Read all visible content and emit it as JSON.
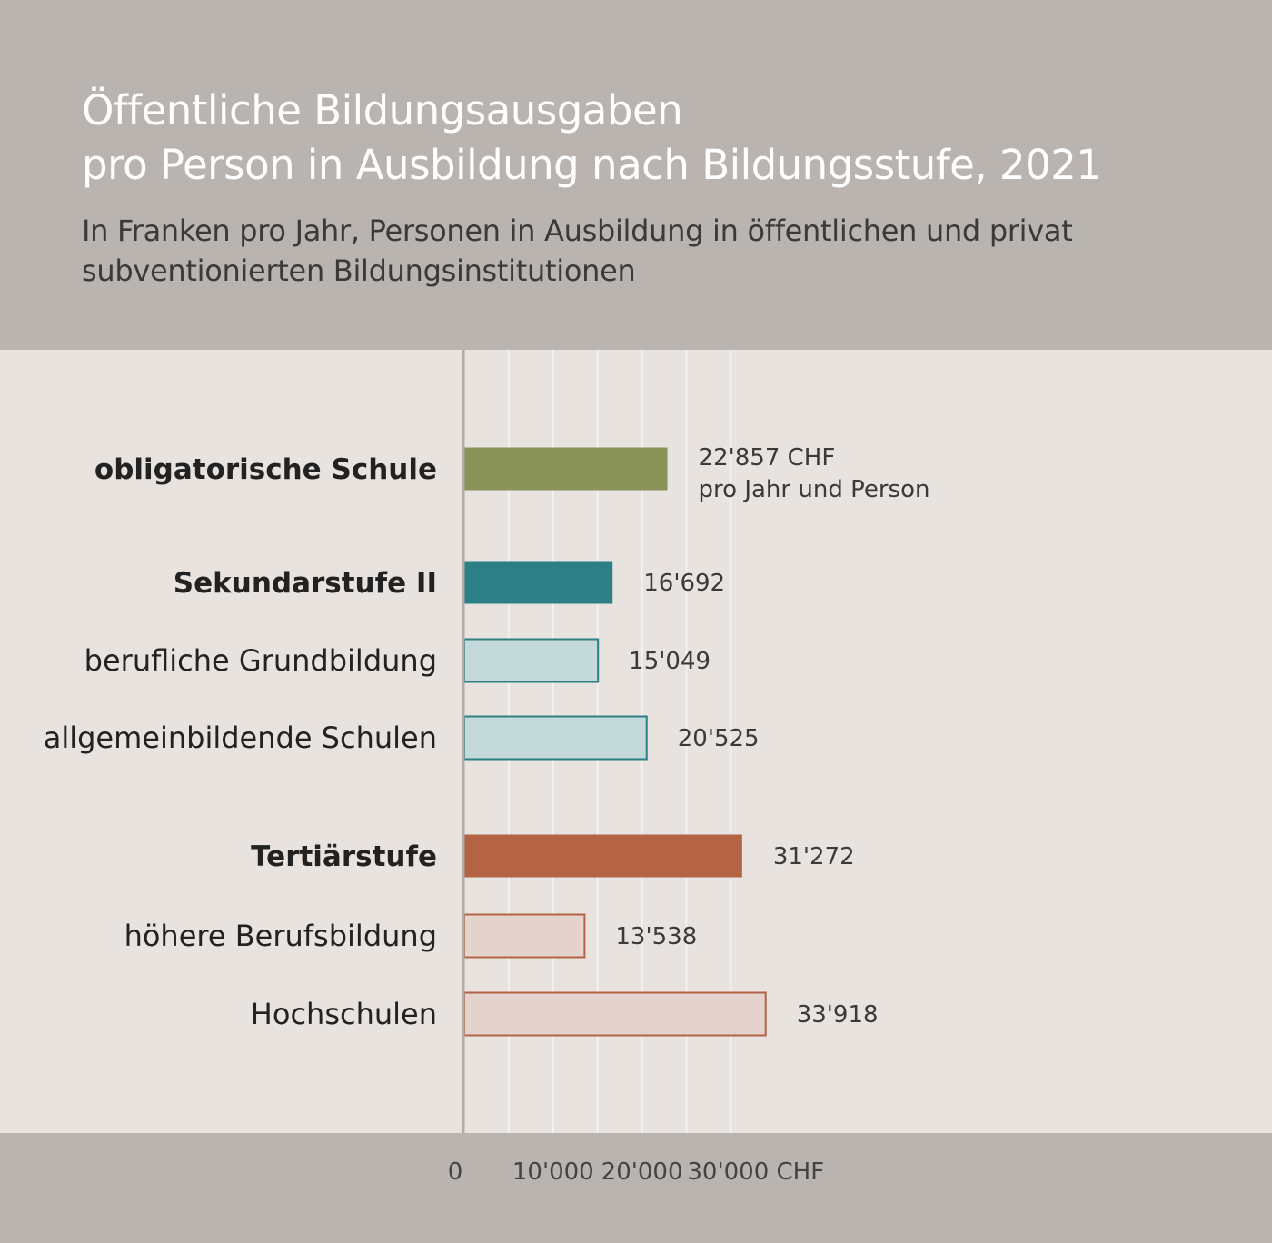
{
  "title": "Öffentliche Bildungsausgaben\npro Person in Ausbildung nach Bildungsstufe, 2021",
  "subtitle": "In Franken pro Jahr, Personen in Ausbildung in öffentlichen und privat\nsubventionierten Bildungsinstitutionen",
  "colors": {
    "green": "#8a9359",
    "teal": "#2c7f84",
    "teal_light": "#c3d9da",
    "rust": "#b46345",
    "rust_light": "#e4d2cd",
    "header_bg": "#b9b4b0",
    "plot_bg": "#e8e3df"
  },
  "chart_data": {
    "type": "bar",
    "orientation": "horizontal",
    "categories": [
      "obligatorische Schule",
      "Sekundarstufe II",
      "berufliche Grundbildung",
      "allgemeinbildende Schulen",
      "Tertiärstufe",
      "höhere Berufsbildung",
      "Hochschulen"
    ],
    "values": [
      22857,
      16692,
      15049,
      20525,
      31272,
      13538,
      33918
    ],
    "value_labels": [
      "22'857 CHF",
      "16'692",
      "15'049",
      "20'525",
      "31'272",
      "13'538",
      "33'918"
    ],
    "value_label_note": "pro Jahr und Person",
    "bold": [
      true,
      true,
      false,
      false,
      true,
      false,
      false
    ],
    "group": [
      "obligatorisch",
      "sek2",
      "sek2",
      "sek2",
      "tertiaer",
      "tertiaer",
      "tertiaer"
    ],
    "styles": [
      "green",
      "teal",
      "teal_light",
      "teal_light",
      "rust",
      "rust_light",
      "rust_light"
    ],
    "xlim": [
      0,
      45000
    ],
    "xticks": [
      0,
      10000,
      20000,
      30000
    ],
    "xtick_labels": [
      "0",
      "10'000",
      "20'000",
      "30'000 CHF"
    ],
    "grid_values": [
      5000,
      10000,
      15000,
      20000,
      25000,
      30000
    ],
    "grid": true
  }
}
